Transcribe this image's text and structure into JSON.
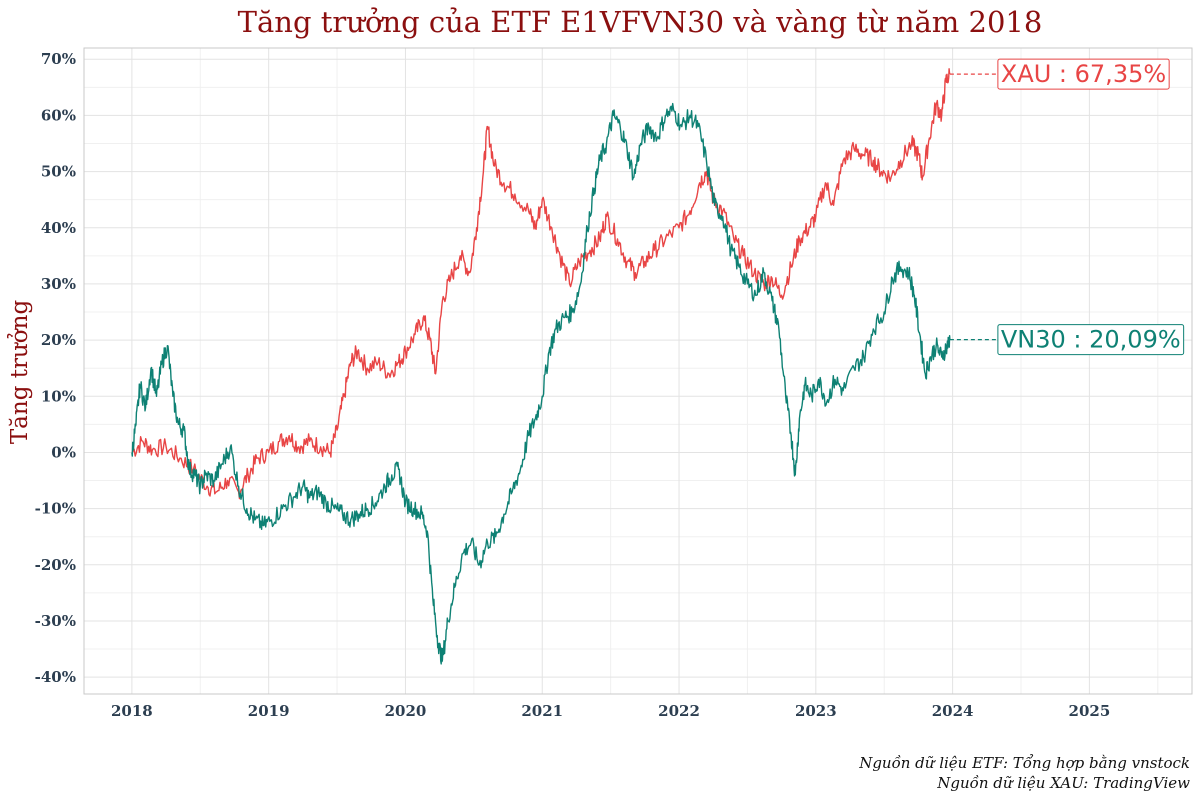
{
  "chart_data": {
    "type": "line",
    "title": "Tăng trưởng của ETF E1VFVN30 và vàng từ năm 2018",
    "ylabel": "Tăng trưởng",
    "xlabel": "",
    "xlim": [
      2017.65,
      2025.75
    ],
    "ylim": [
      -43,
      72
    ],
    "x_ticks": [
      2018,
      2019,
      2020,
      2021,
      2022,
      2023,
      2024,
      2025
    ],
    "x_tick_labels": [
      "2018",
      "2019",
      "2020",
      "2021",
      "2022",
      "2023",
      "2024",
      "2025"
    ],
    "y_ticks": [
      -40,
      -30,
      -20,
      -10,
      0,
      10,
      20,
      30,
      40,
      50,
      60,
      70
    ],
    "y_tick_labels": [
      "-40%",
      "-30%",
      "-20%",
      "-10%",
      "0%",
      "10%",
      "20%",
      "30%",
      "40%",
      "50%",
      "60%",
      "70%"
    ],
    "grid": true,
    "sources": [
      "Nguồn dữ liệu ETF: Tổng hợp bằng vnstock",
      "Nguồn dữ liệu XAU: TradingView"
    ],
    "series": [
      {
        "name": "XAU",
        "color": "#e84545",
        "end_label": "XAU : 67,35%",
        "end_value": 67.35,
        "points": [
          [
            2018.0,
            0
          ],
          [
            2018.08,
            2
          ],
          [
            2018.15,
            0.5
          ],
          [
            2018.25,
            1
          ],
          [
            2018.35,
            -1
          ],
          [
            2018.45,
            -3
          ],
          [
            2018.55,
            -6
          ],
          [
            2018.62,
            -7
          ],
          [
            2018.7,
            -5
          ],
          [
            2018.78,
            -7
          ],
          [
            2018.85,
            -4
          ],
          [
            2018.92,
            -1
          ],
          [
            2019.0,
            0
          ],
          [
            2019.08,
            2
          ],
          [
            2019.15,
            3
          ],
          [
            2019.22,
            1
          ],
          [
            2019.3,
            2
          ],
          [
            2019.38,
            1
          ],
          [
            2019.45,
            0
          ],
          [
            2019.5,
            4
          ],
          [
            2019.55,
            10
          ],
          [
            2019.6,
            16
          ],
          [
            2019.65,
            18
          ],
          [
            2019.72,
            15
          ],
          [
            2019.8,
            16
          ],
          [
            2019.88,
            14
          ],
          [
            2019.95,
            16
          ],
          [
            2020.0,
            18
          ],
          [
            2020.07,
            21
          ],
          [
            2020.13,
            24
          ],
          [
            2020.18,
            20
          ],
          [
            2020.22,
            14
          ],
          [
            2020.27,
            27
          ],
          [
            2020.33,
            31
          ],
          [
            2020.4,
            35
          ],
          [
            2020.47,
            32
          ],
          [
            2020.52,
            40
          ],
          [
            2020.57,
            50
          ],
          [
            2020.6,
            58
          ],
          [
            2020.65,
            51
          ],
          [
            2020.72,
            48
          ],
          [
            2020.8,
            46
          ],
          [
            2020.9,
            43
          ],
          [
            2020.95,
            40
          ],
          [
            2021.0,
            45
          ],
          [
            2021.07,
            40
          ],
          [
            2021.13,
            35
          ],
          [
            2021.2,
            30
          ],
          [
            2021.27,
            34
          ],
          [
            2021.35,
            36
          ],
          [
            2021.42,
            38
          ],
          [
            2021.47,
            42
          ],
          [
            2021.55,
            38
          ],
          [
            2021.62,
            34
          ],
          [
            2021.68,
            32
          ],
          [
            2021.75,
            34
          ],
          [
            2021.82,
            36
          ],
          [
            2021.9,
            38
          ],
          [
            2022.0,
            40
          ],
          [
            2022.08,
            43
          ],
          [
            2022.15,
            48
          ],
          [
            2022.2,
            50
          ],
          [
            2022.25,
            45
          ],
          [
            2022.32,
            43
          ],
          [
            2022.4,
            38
          ],
          [
            2022.47,
            35
          ],
          [
            2022.55,
            32
          ],
          [
            2022.62,
            30
          ],
          [
            2022.68,
            31
          ],
          [
            2022.75,
            28
          ],
          [
            2022.82,
            33
          ],
          [
            2022.88,
            38
          ],
          [
            2022.95,
            40
          ],
          [
            2023.0,
            42
          ],
          [
            2023.07,
            48
          ],
          [
            2023.13,
            44
          ],
          [
            2023.2,
            52
          ],
          [
            2023.28,
            54
          ],
          [
            2023.35,
            53
          ],
          [
            2023.42,
            52
          ],
          [
            2023.48,
            50
          ],
          [
            2023.55,
            49
          ],
          [
            2023.62,
            52
          ],
          [
            2023.7,
            55
          ],
          [
            2023.75,
            53
          ],
          [
            2023.78,
            49
          ],
          [
            2023.83,
            56
          ],
          [
            2023.88,
            62
          ],
          [
            2023.92,
            60
          ],
          [
            2023.95,
            66
          ],
          [
            2023.98,
            67.35
          ]
        ]
      },
      {
        "name": "VN30",
        "color": "#0e8174",
        "end_label": "VN30 : 20,09%",
        "end_value": 20.09,
        "points": [
          [
            2018.0,
            0
          ],
          [
            2018.03,
            5
          ],
          [
            2018.06,
            12
          ],
          [
            2018.1,
            8
          ],
          [
            2018.14,
            15
          ],
          [
            2018.18,
            10
          ],
          [
            2018.22,
            16
          ],
          [
            2018.26,
            19
          ],
          [
            2018.3,
            10
          ],
          [
            2018.34,
            5
          ],
          [
            2018.38,
            4
          ],
          [
            2018.42,
            -3
          ],
          [
            2018.46,
            -4
          ],
          [
            2018.5,
            -6
          ],
          [
            2018.54,
            -4
          ],
          [
            2018.6,
            -5
          ],
          [
            2018.66,
            -2
          ],
          [
            2018.72,
            1
          ],
          [
            2018.78,
            -6
          ],
          [
            2018.84,
            -10
          ],
          [
            2018.9,
            -12
          ],
          [
            2018.96,
            -13
          ],
          [
            2019.02,
            -12
          ],
          [
            2019.1,
            -10
          ],
          [
            2019.18,
            -8
          ],
          [
            2019.25,
            -6
          ],
          [
            2019.3,
            -8
          ],
          [
            2019.36,
            -7
          ],
          [
            2019.42,
            -9
          ],
          [
            2019.48,
            -10
          ],
          [
            2019.54,
            -11
          ],
          [
            2019.6,
            -12
          ],
          [
            2019.66,
            -11
          ],
          [
            2019.72,
            -10
          ],
          [
            2019.78,
            -9
          ],
          [
            2019.85,
            -6
          ],
          [
            2019.9,
            -4
          ],
          [
            2019.95,
            -3
          ],
          [
            2020.0,
            -9
          ],
          [
            2020.06,
            -10
          ],
          [
            2020.12,
            -11
          ],
          [
            2020.16,
            -14
          ],
          [
            2020.2,
            -26
          ],
          [
            2020.24,
            -34
          ],
          [
            2020.27,
            -37
          ],
          [
            2020.31,
            -30
          ],
          [
            2020.36,
            -24
          ],
          [
            2020.42,
            -18
          ],
          [
            2020.48,
            -16
          ],
          [
            2020.54,
            -20
          ],
          [
            2020.6,
            -16
          ],
          [
            2020.66,
            -15
          ],
          [
            2020.72,
            -11
          ],
          [
            2020.78,
            -7
          ],
          [
            2020.84,
            -3
          ],
          [
            2020.9,
            3
          ],
          [
            2020.95,
            6
          ],
          [
            2021.0,
            10
          ],
          [
            2021.05,
            18
          ],
          [
            2021.1,
            22
          ],
          [
            2021.16,
            24
          ],
          [
            2021.22,
            25
          ],
          [
            2021.28,
            30
          ],
          [
            2021.33,
            40
          ],
          [
            2021.38,
            47
          ],
          [
            2021.42,
            52
          ],
          [
            2021.47,
            55
          ],
          [
            2021.52,
            60
          ],
          [
            2021.57,
            58
          ],
          [
            2021.62,
            54
          ],
          [
            2021.67,
            49
          ],
          [
            2021.72,
            55
          ],
          [
            2021.78,
            58
          ],
          [
            2021.84,
            56
          ],
          [
            2021.9,
            60
          ],
          [
            2021.96,
            61
          ],
          [
            2022.02,
            58
          ],
          [
            2022.08,
            60
          ],
          [
            2022.14,
            58
          ],
          [
            2022.2,
            52
          ],
          [
            2022.26,
            44
          ],
          [
            2022.32,
            42
          ],
          [
            2022.38,
            36
          ],
          [
            2022.44,
            33
          ],
          [
            2022.5,
            30
          ],
          [
            2022.56,
            28
          ],
          [
            2022.62,
            32
          ],
          [
            2022.68,
            27
          ],
          [
            2022.73,
            22
          ],
          [
            2022.78,
            10
          ],
          [
            2022.82,
            3
          ],
          [
            2022.85,
            -4
          ],
          [
            2022.88,
            6
          ],
          [
            2022.92,
            12
          ],
          [
            2022.97,
            10
          ],
          [
            2023.02,
            13
          ],
          [
            2023.08,
            9
          ],
          [
            2023.14,
            13
          ],
          [
            2023.2,
            11
          ],
          [
            2023.28,
            15
          ],
          [
            2023.35,
            17
          ],
          [
            2023.42,
            22
          ],
          [
            2023.5,
            25
          ],
          [
            2023.56,
            31
          ],
          [
            2023.62,
            33
          ],
          [
            2023.68,
            32
          ],
          [
            2023.72,
            28
          ],
          [
            2023.76,
            21
          ],
          [
            2023.8,
            14
          ],
          [
            2023.84,
            17
          ],
          [
            2023.88,
            19
          ],
          [
            2023.92,
            17
          ],
          [
            2023.96,
            19
          ],
          [
            2023.98,
            20.09
          ]
        ]
      }
    ]
  }
}
